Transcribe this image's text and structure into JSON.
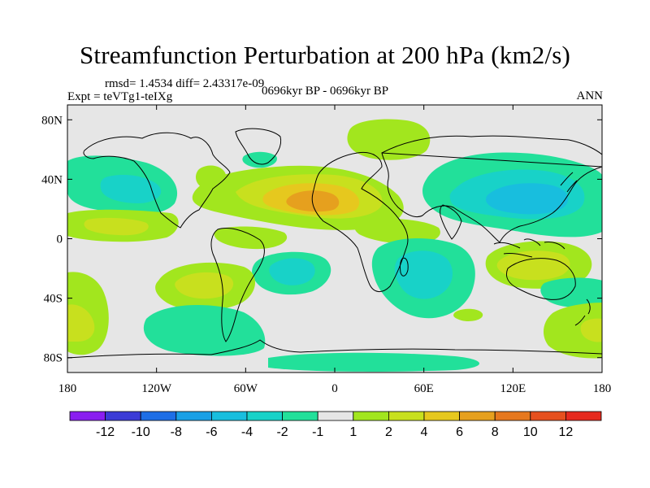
{
  "title": "Streamfunction Perturbation at 200 hPa (km2/s)",
  "stats_text": "rmsd= 1.4534 diff= 2.43317e-09",
  "expt_text": "Expt = teVTg1-teIXg",
  "period_text": "0696kyr BP - 0696kyr BP",
  "season_text": "ANN",
  "axes": {
    "lat_ticks": [
      {
        "lat": 80,
        "label": "80N"
      },
      {
        "lat": 40,
        "label": "40N"
      },
      {
        "lat": 0,
        "label": "0"
      },
      {
        "lat": -40,
        "label": "40S"
      },
      {
        "lat": -80,
        "label": "80S"
      }
    ],
    "lon_ticks": [
      {
        "lon": -180,
        "label": "180"
      },
      {
        "lon": -120,
        "label": "120W"
      },
      {
        "lon": -60,
        "label": "60W"
      },
      {
        "lon": 0,
        "label": "0"
      },
      {
        "lon": 60,
        "label": "60E"
      },
      {
        "lon": 120,
        "label": "120E"
      },
      {
        "lon": 180,
        "label": "180"
      }
    ]
  },
  "colorbar": {
    "colors": [
      "#8a1ef0",
      "#3b3bd6",
      "#1e6ee6",
      "#1aa0e6",
      "#18bede",
      "#18d2c8",
      "#22e09a",
      "#e6e6e6",
      "#a2e61e",
      "#c8e01e",
      "#e6c81e",
      "#e6a01e",
      "#e6781e",
      "#e6501e",
      "#e62a1e"
    ],
    "labels": [
      "-12",
      "-10",
      "-8",
      "-6",
      "-4",
      "-2",
      "-1",
      "1",
      "2",
      "4",
      "6",
      "8",
      "10",
      "12"
    ]
  },
  "chart_data": {
    "type": "contour_map",
    "variable": "Streamfunction Perturbation at 200 hPa",
    "units": "km2/s",
    "levels": [
      -12,
      -10,
      -8,
      -6,
      -4,
      -2,
      -1,
      1,
      2,
      4,
      6,
      8,
      10,
      12
    ],
    "xlim": [
      -180,
      180
    ],
    "ylim": [
      -90,
      90
    ],
    "features": [
      {
        "name": "north-africa-high",
        "lon": -12,
        "lat": 27,
        "peak": 6
      },
      {
        "name": "asia-low",
        "lon": 120,
        "lat": 26,
        "peak": -4
      },
      {
        "name": "north-pacific-low",
        "lon": -160,
        "lat": 32,
        "peak": -4
      },
      {
        "name": "indian-ocean-low",
        "lon": 52,
        "lat": -22,
        "peak": -4
      },
      {
        "name": "south-atlantic-low",
        "lon": -18,
        "lat": -18,
        "peak": -4
      },
      {
        "name": "australia-high",
        "lon": 120,
        "lat": -14,
        "peak": 4
      },
      {
        "name": "south-pacific-high",
        "lon": -112,
        "lat": -25,
        "peak": 4
      },
      {
        "name": "se-pacific-high",
        "lon": -175,
        "lat": -55,
        "peak": 4
      },
      {
        "name": "southern-ocean-low",
        "lon": -85,
        "lat": -62,
        "peak": -2
      },
      {
        "name": "arctic-high",
        "lon": 42,
        "lat": 78,
        "peak": 2
      }
    ]
  }
}
